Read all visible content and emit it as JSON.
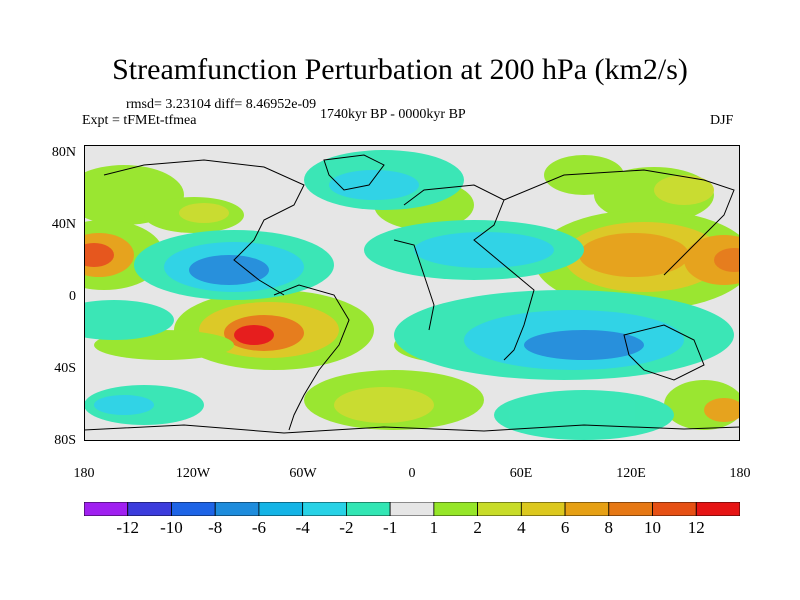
{
  "title": "Streamfunction Perturbation at 200 hPa (km2/s)",
  "stats": "rmsd= 3.23104 diff= 8.46952e-09",
  "experiment": "Expt = tFMEt-tfmea",
  "period": "1740kyr BP - 0000kyr BP",
  "season": "DJF",
  "lat_ticks": [
    "80N",
    "40N",
    "0",
    "40S",
    "80S"
  ],
  "lon_ticks": [
    "180",
    "120W",
    "60W",
    "0",
    "60E",
    "120E",
    "180"
  ],
  "colorbar": {
    "labels": [
      "-12",
      "-10",
      "-8",
      "-6",
      "-4",
      "-2",
      "-1",
      "1",
      "2",
      "4",
      "6",
      "8",
      "10",
      "12"
    ],
    "colors": [
      "#a020f0",
      "#3c3cdc",
      "#1e64e6",
      "#1e8cdc",
      "#14b4e6",
      "#28d2e6",
      "#32e6b4",
      "#e6e6e6",
      "#96e628",
      "#c8dc28",
      "#dcc81e",
      "#e6a014",
      "#e67814",
      "#e65014",
      "#e61414"
    ]
  },
  "map": {
    "background_color": "#e6e6e6",
    "coastline_color": "#000000"
  }
}
